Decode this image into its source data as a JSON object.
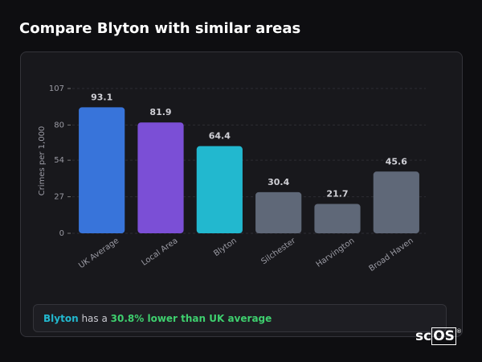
{
  "header": {
    "title": "Compare Blyton with similar areas"
  },
  "chart_data": {
    "type": "bar",
    "y_label": "Crimes per 1,000",
    "categories": [
      "UK Average",
      "Local Area",
      "Blyton",
      "Silchester",
      "Harvington",
      "Broad Haven"
    ],
    "values": [
      93.1,
      81.9,
      64.4,
      30.4,
      21.7,
      45.6
    ],
    "colors": [
      "#3874da",
      "#7b4fd6",
      "#22b8cf",
      "#5f6878",
      "#5f6878",
      "#5f6878"
    ],
    "ylim": [
      0,
      107
    ],
    "yticks": [
      0,
      27,
      54,
      80,
      107
    ],
    "grid": true
  },
  "summary": {
    "area": "Blyton",
    "text": "has a",
    "highlight": "30.8% lower than UK average"
  },
  "logo": {
    "text": "sc",
    "boxed": "OS",
    "mark": "®"
  }
}
